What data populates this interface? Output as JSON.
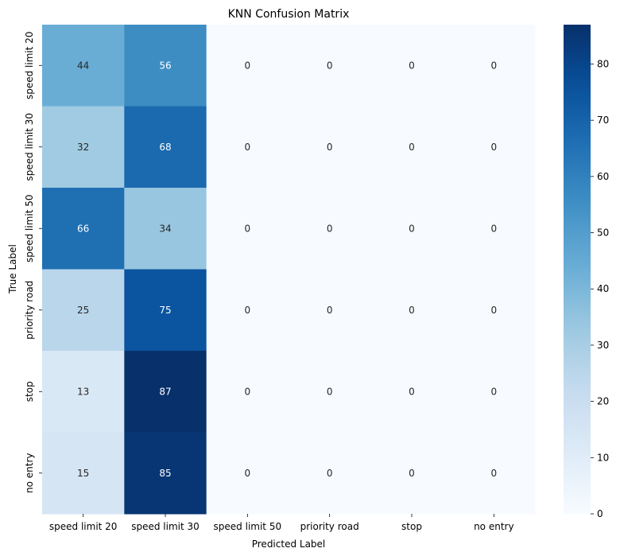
{
  "chart_data": {
    "type": "heatmap",
    "title": "KNN Confusion Matrix",
    "xlabel": "Predicted Label",
    "ylabel": "True Label",
    "x_categories": [
      "speed limit 20",
      "speed limit 30",
      "speed limit 50",
      "priority road",
      "stop",
      "no entry"
    ],
    "y_categories": [
      "speed limit 20",
      "speed limit 30",
      "speed limit 50",
      "priority road",
      "stop",
      "no entry"
    ],
    "values": [
      [
        44,
        56,
        0,
        0,
        0,
        0
      ],
      [
        32,
        68,
        0,
        0,
        0,
        0
      ],
      [
        66,
        34,
        0,
        0,
        0,
        0
      ],
      [
        25,
        75,
        0,
        0,
        0,
        0
      ],
      [
        13,
        87,
        0,
        0,
        0,
        0
      ],
      [
        15,
        85,
        0,
        0,
        0,
        0
      ]
    ],
    "colormap": "Blues",
    "colorbar": {
      "range": [
        0,
        87
      ],
      "ticks": [
        0,
        10,
        20,
        30,
        40,
        50,
        60,
        70,
        80
      ]
    },
    "annotations": true
  }
}
